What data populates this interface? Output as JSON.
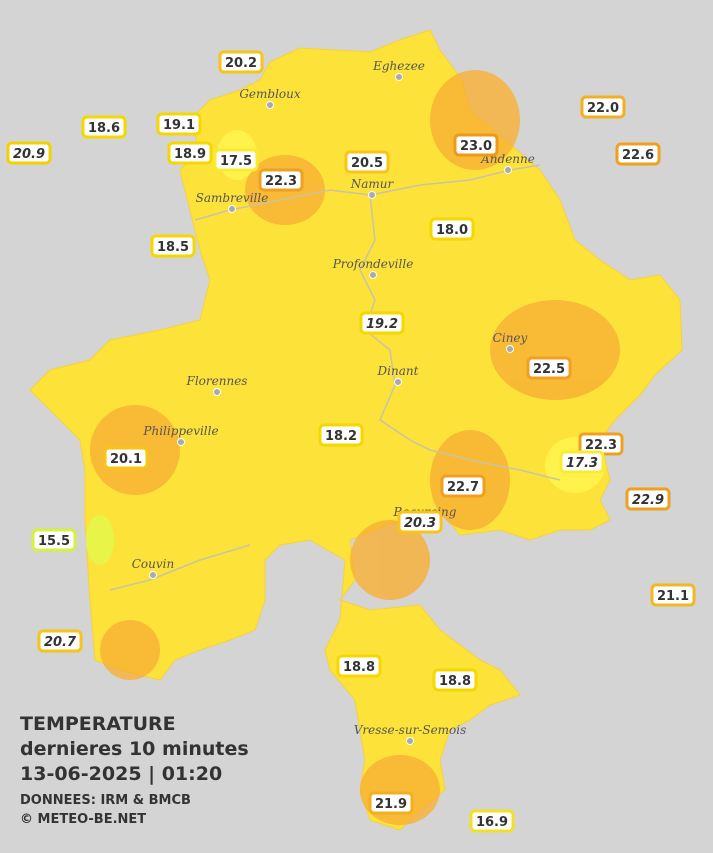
{
  "caption": {
    "title": "TEMPERATURE",
    "subtitle": "dernieres 10 minutes",
    "timestamp": "13-06-2025  |  01:20",
    "source": "DONNEES: IRM & BMCB",
    "copyright": "© METEO-BE.NET"
  },
  "cities": [
    "Eghezee",
    "Gembloux",
    "Andenne",
    "Namur",
    "Sambreville",
    "Profondeville",
    "Ciney",
    "Dinant",
    "Florennes",
    "Philippeville",
    "Beauraing",
    "Couvin",
    "Vresse-sur-Semois"
  ],
  "stations": [
    {
      "text": "20.2",
      "italic": false,
      "color": "#f5c518"
    },
    {
      "text": "18.6",
      "italic": false,
      "color": "#f5d800"
    },
    {
      "text": "19.1",
      "italic": false,
      "color": "#f5d800"
    },
    {
      "text": "20.9",
      "italic": true,
      "color": "#f5d000"
    },
    {
      "text": "18.9",
      "italic": false,
      "color": "#f5d800"
    },
    {
      "text": "17.5",
      "italic": false,
      "color": "#f8ec30"
    },
    {
      "text": "22.3",
      "italic": false,
      "color": "#f0a020"
    },
    {
      "text": "20.5",
      "italic": false,
      "color": "#f5c518"
    },
    {
      "text": "23.0",
      "italic": false,
      "color": "#ee9a18"
    },
    {
      "text": "22.0",
      "italic": false,
      "color": "#f2b020"
    },
    {
      "text": "22.6",
      "italic": false,
      "color": "#f0a020"
    },
    {
      "text": "18.5",
      "italic": false,
      "color": "#f5d800"
    },
    {
      "text": "18.0",
      "italic": false,
      "color": "#f5d800"
    },
    {
      "text": "19.2",
      "italic": true,
      "color": "#f5d800"
    },
    {
      "text": "22.5",
      "italic": false,
      "color": "#f0a020"
    },
    {
      "text": "18.2",
      "italic": false,
      "color": "#f5d800"
    },
    {
      "text": "20.1",
      "italic": false,
      "color": "#f5c518"
    },
    {
      "text": "22.3",
      "italic": false,
      "color": "#f0a020"
    },
    {
      "text": "17.3",
      "italic": true,
      "color": "#f8ec30"
    },
    {
      "text": "22.9",
      "italic": true,
      "color": "#f0a020"
    },
    {
      "text": "22.7",
      "italic": false,
      "color": "#f0a020"
    },
    {
      "text": "20.3",
      "italic": true,
      "color": "#f5c518"
    },
    {
      "text": "15.5",
      "italic": false,
      "color": "#d8f040"
    },
    {
      "text": "21.1",
      "italic": false,
      "color": "#f2b820"
    },
    {
      "text": "20.7",
      "italic": true,
      "color": "#f5c518"
    },
    {
      "text": "18.8",
      "italic": false,
      "color": "#f5d800"
    },
    {
      "text": "18.8",
      "italic": false,
      "color": "#f5d800"
    },
    {
      "text": "21.9",
      "italic": false,
      "color": "#f2b020"
    },
    {
      "text": "16.9",
      "italic": false,
      "color": "#f5e020"
    }
  ]
}
